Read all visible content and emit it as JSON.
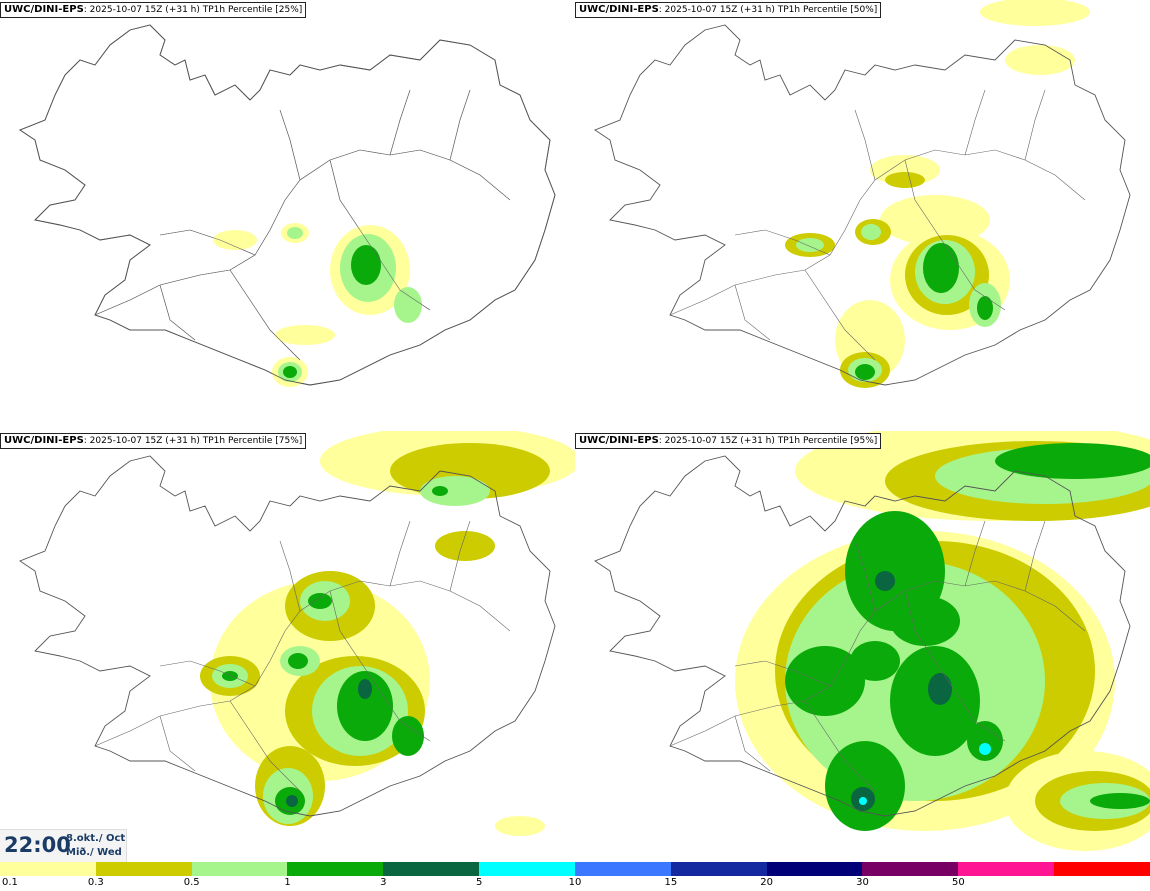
{
  "panels": [
    {
      "model": "UWC/DINI-EPS",
      "run": ": 2025-10-07 15Z (+31 h) ",
      "param": "TP1h Percentile [25%]"
    },
    {
      "model": "UWC/DINI-EPS",
      "run": ": 2025-10-07 15Z (+31 h) ",
      "param": "TP1h Percentile [50%]"
    },
    {
      "model": "UWC/DINI-EPS",
      "run": ": 2025-10-07 15Z (+31 h) ",
      "param": "TP1h Percentile [75%]"
    },
    {
      "model": "UWC/DINI-EPS",
      "run": ": 2025-10-07 15Z (+31 h) ",
      "param": "TP1h Percentile [95%]"
    }
  ],
  "time": {
    "clock": "22:00",
    "date_line1": "8.okt./ Oct",
    "date_line2": "Mið./ Wed"
  },
  "legend": {
    "colors": [
      "#ffff9c",
      "#cccc00",
      "#a6f58c",
      "#0aaa0a",
      "#0a6640",
      "#00ffff",
      "#3c78ff",
      "#1428a0",
      "#000078",
      "#780064",
      "#ff1493",
      "#ff0000"
    ],
    "tick_labels": [
      "0.1",
      "0.3",
      "0.5",
      "1",
      "3",
      "5",
      "10",
      "15",
      "20",
      "30",
      "50"
    ]
  }
}
